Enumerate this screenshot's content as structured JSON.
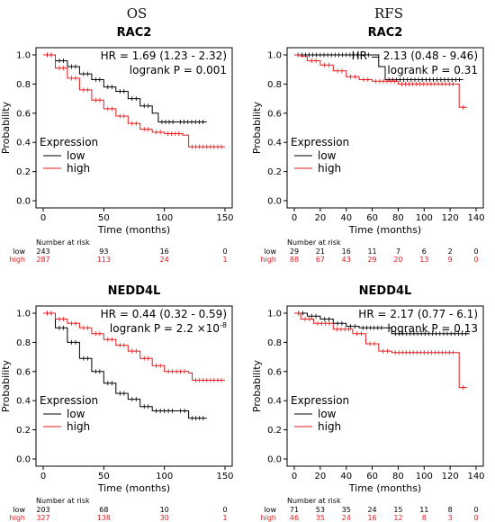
{
  "figure": {
    "col_titles": [
      "OS",
      "RFS"
    ],
    "colors": {
      "low": "#000000",
      "high": "#e8191b"
    },
    "legend_title": "Expression",
    "number_at_risk_label": "Number at risk"
  },
  "chart_data": [
    {
      "type": "line",
      "title": "RAC2",
      "hr_text": "HR = 1.69 (1.23 - 2.32)",
      "p_text": "logrank P = 0.001",
      "xlabel": "Time (months)",
      "ylabel": "Probability",
      "xlim": [
        0,
        150
      ],
      "ylim": [
        0,
        1
      ],
      "xticks": [
        0,
        50,
        100,
        150
      ],
      "yticks": [
        0.0,
        0.2,
        0.4,
        0.6,
        0.8,
        1.0
      ],
      "legend": "bottom-left",
      "series": [
        {
          "name": "low",
          "color": "#000000",
          "points": [
            [
              0,
              1.0
            ],
            [
              10,
              0.96
            ],
            [
              20,
              0.92
            ],
            [
              30,
              0.87
            ],
            [
              40,
              0.83
            ],
            [
              50,
              0.78
            ],
            [
              60,
              0.75
            ],
            [
              70,
              0.7
            ],
            [
              80,
              0.65
            ],
            [
              90,
              0.6
            ],
            [
              95,
              0.54
            ],
            [
              110,
              0.54
            ],
            [
              135,
              0.54
            ]
          ]
        },
        {
          "name": "high",
          "color": "#e8191b",
          "points": [
            [
              0,
              1.0
            ],
            [
              10,
              0.91
            ],
            [
              20,
              0.84
            ],
            [
              30,
              0.76
            ],
            [
              40,
              0.69
            ],
            [
              50,
              0.63
            ],
            [
              60,
              0.58
            ],
            [
              70,
              0.53
            ],
            [
              80,
              0.49
            ],
            [
              90,
              0.47
            ],
            [
              100,
              0.46
            ],
            [
              115,
              0.45
            ],
            [
              120,
              0.37
            ],
            [
              150,
              0.37
            ]
          ]
        }
      ],
      "risk_table": {
        "times": [
          0,
          50,
          100,
          150
        ],
        "rows": [
          {
            "label": "low",
            "values": [
              "243",
              "93",
              "16",
              "0"
            ]
          },
          {
            "label": "high",
            "values": [
              "287",
              "113",
              "24",
              "1"
            ]
          }
        ]
      }
    },
    {
      "type": "line",
      "title": "RAC2",
      "hr_text": "HR = 2.13 (0.48 - 9.46)",
      "p_text": "logrank P = 0.31",
      "xlabel": "Time (months)",
      "ylabel": "Probability",
      "xlim": [
        0,
        140
      ],
      "ylim": [
        0,
        1
      ],
      "xticks": [
        0,
        20,
        40,
        60,
        80,
        100,
        120,
        140
      ],
      "yticks": [
        0.0,
        0.2,
        0.4,
        0.6,
        0.8,
        1.0
      ],
      "legend": "bottom-left",
      "series": [
        {
          "name": "low",
          "color": "#000000",
          "points": [
            [
              0,
              1.0
            ],
            [
              60,
              1.0
            ],
            [
              65,
              0.92
            ],
            [
              70,
              0.83
            ],
            [
              130,
              0.83
            ]
          ]
        },
        {
          "name": "high",
          "color": "#e8191b",
          "points": [
            [
              0,
              1.0
            ],
            [
              5,
              0.99
            ],
            [
              10,
              0.96
            ],
            [
              20,
              0.93
            ],
            [
              30,
              0.89
            ],
            [
              40,
              0.85
            ],
            [
              50,
              0.83
            ],
            [
              60,
              0.82
            ],
            [
              80,
              0.8
            ],
            [
              125,
              0.8
            ],
            [
              127,
              0.64
            ],
            [
              133,
              0.64
            ]
          ]
        }
      ],
      "risk_table": {
        "times": [
          0,
          20,
          40,
          60,
          80,
          100,
          120,
          140
        ],
        "rows": [
          {
            "label": "low",
            "values": [
              "29",
              "21",
              "16",
              "11",
              "7",
              "6",
              "2",
              "0"
            ]
          },
          {
            "label": "high",
            "values": [
              "88",
              "67",
              "43",
              "29",
              "20",
              "13",
              "9",
              "0"
            ]
          }
        ]
      }
    },
    {
      "type": "line",
      "title": "NEDD4L",
      "hr_text": "HR = 0.44 (0.32 - 0.59)",
      "p_text": "logrank P = 2.2",
      "p_exponent_text": "×10",
      "p_exponent": "-8",
      "xlabel": "Time (months)",
      "ylabel": "Probability",
      "xlim": [
        0,
        150
      ],
      "ylim": [
        0,
        1
      ],
      "xticks": [
        0,
        50,
        100,
        150
      ],
      "yticks": [
        0.0,
        0.2,
        0.4,
        0.6,
        0.8,
        1.0
      ],
      "legend": "bottom-left",
      "series": [
        {
          "name": "low",
          "color": "#000000",
          "points": [
            [
              0,
              1.0
            ],
            [
              10,
              0.9
            ],
            [
              20,
              0.8
            ],
            [
              30,
              0.69
            ],
            [
              40,
              0.6
            ],
            [
              50,
              0.52
            ],
            [
              60,
              0.45
            ],
            [
              70,
              0.41
            ],
            [
              80,
              0.36
            ],
            [
              90,
              0.33
            ],
            [
              110,
              0.33
            ],
            [
              120,
              0.28
            ],
            [
              135,
              0.28
            ]
          ]
        },
        {
          "name": "high",
          "color": "#e8191b",
          "points": [
            [
              0,
              1.0
            ],
            [
              10,
              0.96
            ],
            [
              20,
              0.93
            ],
            [
              30,
              0.9
            ],
            [
              40,
              0.86
            ],
            [
              50,
              0.82
            ],
            [
              60,
              0.78
            ],
            [
              70,
              0.74
            ],
            [
              80,
              0.69
            ],
            [
              90,
              0.64
            ],
            [
              100,
              0.6
            ],
            [
              120,
              0.59
            ],
            [
              123,
              0.54
            ],
            [
              150,
              0.54
            ]
          ]
        }
      ],
      "risk_table": {
        "times": [
          0,
          50,
          100,
          150
        ],
        "rows": [
          {
            "label": "low",
            "values": [
              "203",
              "68",
              "10",
              "0"
            ]
          },
          {
            "label": "high",
            "values": [
              "327",
              "138",
              "30",
              "1"
            ]
          }
        ]
      }
    },
    {
      "type": "line",
      "title": "NEDD4L",
      "hr_text": "HR = 2.17 (0.77 - 6.1)",
      "p_text": "logrank P = 0.13",
      "xlabel": "Time (months)",
      "ylabel": "Probability",
      "xlim": [
        0,
        140
      ],
      "ylim": [
        0,
        1
      ],
      "xticks": [
        0,
        20,
        40,
        60,
        80,
        100,
        120,
        140
      ],
      "yticks": [
        0.0,
        0.2,
        0.4,
        0.6,
        0.8,
        1.0
      ],
      "legend": "bottom-left",
      "series": [
        {
          "name": "low",
          "color": "#000000",
          "points": [
            [
              0,
              1.0
            ],
            [
              10,
              0.98
            ],
            [
              20,
              0.96
            ],
            [
              30,
              0.93
            ],
            [
              40,
              0.91
            ],
            [
              50,
              0.9
            ],
            [
              70,
              0.9
            ],
            [
              75,
              0.86
            ],
            [
              135,
              0.86
            ]
          ]
        },
        {
          "name": "high",
          "color": "#e8191b",
          "points": [
            [
              0,
              1.0
            ],
            [
              5,
              0.96
            ],
            [
              15,
              0.93
            ],
            [
              30,
              0.89
            ],
            [
              45,
              0.86
            ],
            [
              55,
              0.79
            ],
            [
              65,
              0.74
            ],
            [
              75,
              0.73
            ],
            [
              125,
              0.73
            ],
            [
              127,
              0.49
            ],
            [
              133,
              0.49
            ]
          ]
        }
      ],
      "risk_table": {
        "times": [
          0,
          20,
          40,
          60,
          80,
          100,
          120,
          140
        ],
        "rows": [
          {
            "label": "low",
            "values": [
              "71",
              "53",
              "35",
              "24",
              "15",
              "11",
              "8",
              "0"
            ]
          },
          {
            "label": "high",
            "values": [
              "46",
              "35",
              "24",
              "16",
              "12",
              "8",
              "3",
              "0"
            ]
          }
        ]
      }
    }
  ]
}
